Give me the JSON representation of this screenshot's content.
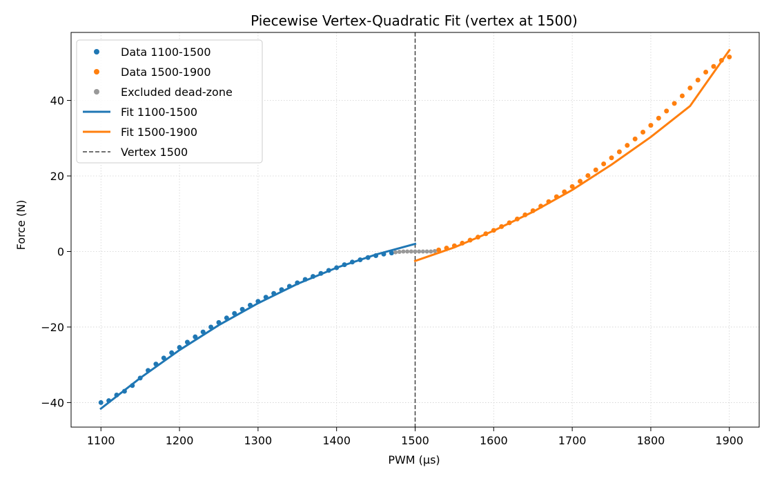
{
  "chart_data": {
    "type": "scatter",
    "title": "Piecewise Vertex-Quadratic Fit (vertex at 1500)",
    "xlabel": "PWM (µs)",
    "ylabel": "Force (N)",
    "xlim": [
      1062,
      1938
    ],
    "ylim": [
      -46.5,
      58
    ],
    "xticks": [
      1100,
      1200,
      1300,
      1400,
      1500,
      1600,
      1700,
      1800,
      1900
    ],
    "yticks": [
      -40,
      -20,
      0,
      20,
      40
    ],
    "xtick_labels": [
      "1100",
      "1200",
      "1300",
      "1400",
      "1500",
      "1600",
      "1700",
      "1800",
      "1900"
    ],
    "ytick_labels": [
      "−40",
      "−20",
      "0",
      "20",
      "40"
    ],
    "grid": true,
    "legend_position": "top-left",
    "vertex": 1500,
    "series": [
      {
        "name": "Data 1100-1500",
        "kind": "scatter",
        "color": "#1f77b4",
        "x": [
          1100,
          1110,
          1120,
          1130,
          1140,
          1150,
          1160,
          1170,
          1180,
          1190,
          1200,
          1210,
          1220,
          1230,
          1240,
          1250,
          1260,
          1270,
          1280,
          1290,
          1300,
          1310,
          1320,
          1330,
          1340,
          1350,
          1360,
          1370,
          1380,
          1390,
          1400,
          1410,
          1420,
          1430,
          1440,
          1450,
          1460,
          1470
        ],
        "y": [
          -40,
          -39.5,
          -38,
          -37,
          -35.5,
          -33.5,
          -31.5,
          -29.8,
          -28.2,
          -26.8,
          -25.4,
          -24,
          -22.6,
          -21.3,
          -20,
          -18.8,
          -17.6,
          -16.4,
          -15.3,
          -14.2,
          -13.2,
          -12.1,
          -11.1,
          -10.1,
          -9.2,
          -8.3,
          -7.4,
          -6.6,
          -5.8,
          -5,
          -4.3,
          -3.5,
          -2.8,
          -2.2,
          -1.6,
          -1.1,
          -0.7,
          -0.4
        ]
      },
      {
        "name": "Data 1500-1900",
        "kind": "scatter",
        "color": "#ff7f0e",
        "x": [
          1530,
          1540,
          1550,
          1560,
          1570,
          1580,
          1590,
          1600,
          1610,
          1620,
          1630,
          1640,
          1650,
          1660,
          1670,
          1680,
          1690,
          1700,
          1710,
          1720,
          1730,
          1740,
          1750,
          1760,
          1770,
          1780,
          1790,
          1800,
          1810,
          1820,
          1830,
          1840,
          1850,
          1860,
          1870,
          1880,
          1890,
          1900
        ],
        "y": [
          0.4,
          0.9,
          1.5,
          2.2,
          3,
          3.8,
          4.7,
          5.6,
          6.6,
          7.6,
          8.6,
          9.7,
          10.8,
          12,
          13.2,
          14.5,
          15.8,
          17.2,
          18.6,
          20.1,
          21.6,
          23.2,
          24.8,
          26.4,
          28.1,
          29.8,
          31.6,
          33.4,
          35.3,
          37.2,
          39.2,
          41.2,
          43.3,
          45.4,
          47.5,
          49,
          50.6,
          51.5
        ]
      },
      {
        "name": "Excluded dead-zone",
        "kind": "scatter",
        "color": "#999999",
        "x": [
          1475,
          1480,
          1485,
          1490,
          1495,
          1500,
          1505,
          1510,
          1515,
          1520,
          1525
        ],
        "y": [
          -0.2,
          -0.1,
          0,
          0,
          0,
          0,
          0,
          0,
          0,
          0,
          0.1
        ]
      },
      {
        "name": "Fit 1100-1500",
        "kind": "line",
        "color": "#1f77b4",
        "x": [
          1100,
          1150,
          1200,
          1250,
          1300,
          1350,
          1400,
          1450,
          1500
        ],
        "y": [
          -41.6,
          -33.5,
          -26.1,
          -19.5,
          -13.7,
          -8.6,
          -4.3,
          -0.8,
          2
        ]
      },
      {
        "name": "Fit 1500-1900",
        "kind": "line",
        "color": "#ff7f0e",
        "x": [
          1500,
          1550,
          1600,
          1650,
          1700,
          1750,
          1800,
          1850,
          1900
        ],
        "y": [
          -2.5,
          1.1,
          5.5,
          10.5,
          16.3,
          23,
          30.3,
          38.5,
          53.3
        ]
      },
      {
        "name": "Vertex 1500",
        "kind": "vline",
        "color": "#404040",
        "x": [
          1500
        ]
      }
    ]
  }
}
